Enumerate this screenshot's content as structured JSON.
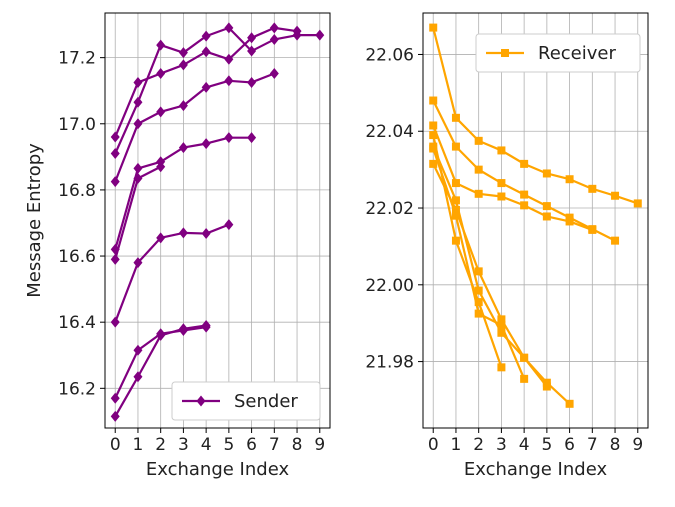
{
  "chart_data": [
    {
      "type": "line",
      "ylabel": "Message Entropy",
      "xlabel": "Exchange Index",
      "xlim": [
        -0.45,
        9.45
      ],
      "ylim": [
        16.08,
        17.335
      ],
      "xticks": [
        0,
        1,
        2,
        3,
        4,
        5,
        6,
        7,
        8,
        9
      ],
      "yticks": [
        16.2,
        16.4,
        16.6,
        16.8,
        17.0,
        17.2
      ],
      "ytick_labels": [
        "16.2",
        "16.4",
        "16.6",
        "16.8",
        "17.0",
        "17.2"
      ],
      "grid": true,
      "legend": "lower-right",
      "color": "#800080",
      "marker": "diamond",
      "series": [
        {
          "name": "Sender",
          "values": [
            16.115,
            16.235,
            16.36,
            16.38,
            16.39
          ]
        },
        {
          "name": "",
          "values": [
            16.17,
            16.315,
            16.365,
            16.375,
            16.385
          ]
        },
        {
          "name": "",
          "values": [
            16.4,
            16.58,
            16.655,
            16.67,
            16.668,
            16.695
          ]
        },
        {
          "name": "",
          "values": [
            16.59,
            16.835,
            16.87
          ]
        },
        {
          "name": "",
          "values": [
            16.62,
            16.865,
            16.885,
            16.928,
            16.94,
            16.958,
            16.958
          ]
        },
        {
          "name": "",
          "values": [
            16.825,
            17.0,
            17.036,
            17.055,
            17.11,
            17.13,
            17.125,
            17.152
          ]
        },
        {
          "name": "",
          "values": [
            16.91,
            17.065,
            17.238,
            17.215,
            17.265,
            17.29,
            17.22,
            17.255,
            17.268,
            17.268
          ]
        },
        {
          "name": "",
          "values": [
            16.96,
            17.125,
            17.152,
            17.178,
            17.218,
            17.195,
            17.26,
            17.29,
            17.28
          ]
        }
      ]
    },
    {
      "type": "line",
      "xlabel": "Exchange Index",
      "ylabel": "",
      "xlim": [
        -0.45,
        9.45
      ],
      "ylim": [
        21.9627,
        22.0708
      ],
      "xticks": [
        0,
        1,
        2,
        3,
        4,
        5,
        6,
        7,
        8,
        9
      ],
      "yticks": [
        21.98,
        22.0,
        22.02,
        22.04,
        22.06
      ],
      "ytick_labels": [
        "21.98",
        "22.00",
        "22.02",
        "22.04",
        "22.06"
      ],
      "grid": true,
      "legend": "top-right",
      "color": "#ffa500",
      "marker": "square",
      "series": [
        {
          "name": "Receiver",
          "values": [
            22.067,
            22.0435,
            22.0375,
            22.035,
            22.0315,
            22.029,
            22.0275,
            22.025,
            22.0232,
            22.0212
          ]
        },
        {
          "name": "",
          "values": [
            22.048,
            22.036,
            22.03,
            22.0265,
            22.0235,
            22.0205,
            22.0175,
            22.0145,
            22.0115
          ]
        },
        {
          "name": "",
          "values": [
            22.0415,
            22.0265,
            22.0237,
            22.023,
            22.0207,
            22.0178,
            22.0165,
            22.0143
          ]
        },
        {
          "name": "",
          "values": [
            22.036,
            22.022,
            21.9985,
            21.9875,
            21.981,
            21.9745,
            21.969
          ]
        },
        {
          "name": "",
          "values": [
            22.0315,
            22.0195,
            22.0035,
            21.991,
            21.981,
            21.9735
          ]
        },
        {
          "name": "",
          "values": [
            22.0355,
            22.018,
            21.9925,
            21.9895,
            21.9755
          ]
        },
        {
          "name": "",
          "values": [
            22.039,
            22.0115,
            21.9955,
            21.9785
          ]
        }
      ]
    }
  ]
}
